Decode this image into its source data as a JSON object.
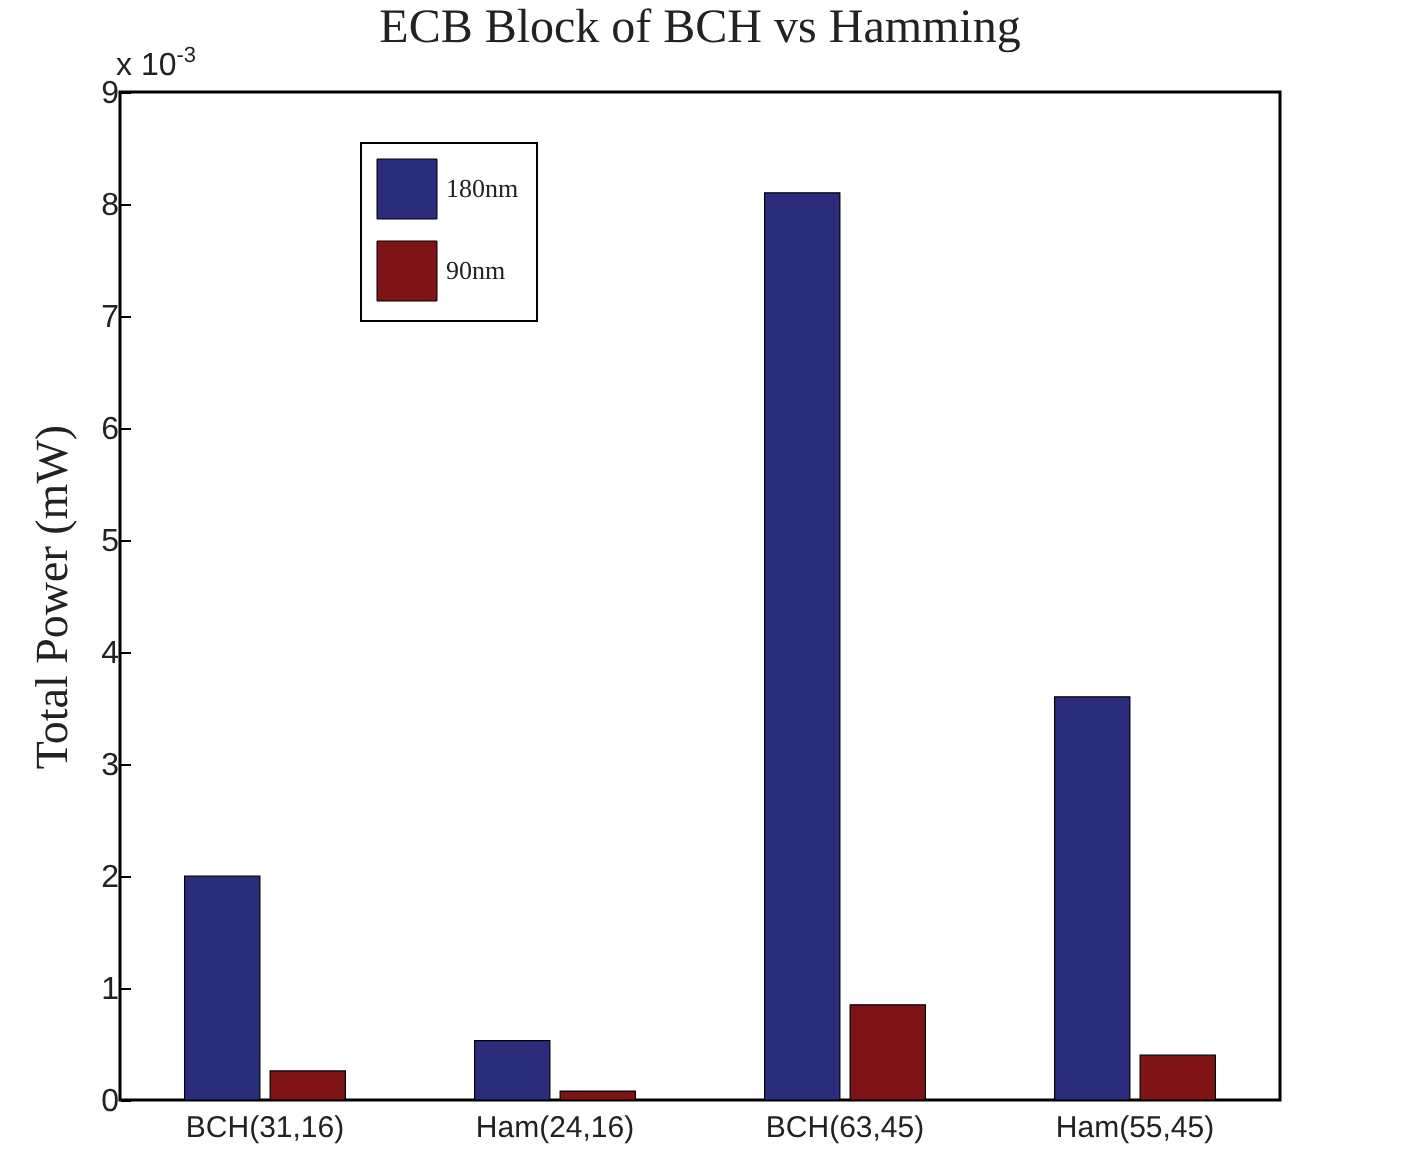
{
  "chart_data": {
    "type": "bar",
    "title": "ECB Block of BCH vs Hamming",
    "ylabel": "Total Power (mW)",
    "categories": [
      "BCH(31,16)",
      "Ham(24,16)",
      "BCH(63,45)",
      "Ham(55,45)"
    ],
    "series": [
      {
        "name": "180nm",
        "color": "#2b2c7c",
        "values": [
          2.0,
          0.53,
          8.1,
          3.6
        ]
      },
      {
        "name": "90nm",
        "color": "#7f1416",
        "values": [
          0.26,
          0.08,
          0.85,
          0.4
        ]
      }
    ],
    "ylim": [
      0,
      9
    ],
    "yticks": [
      0,
      1,
      2,
      3,
      4,
      5,
      6,
      7,
      8,
      9
    ],
    "grid": false,
    "legend": "top left",
    "annotations": [
      "x 10$^{-3}$"
    ]
  }
}
